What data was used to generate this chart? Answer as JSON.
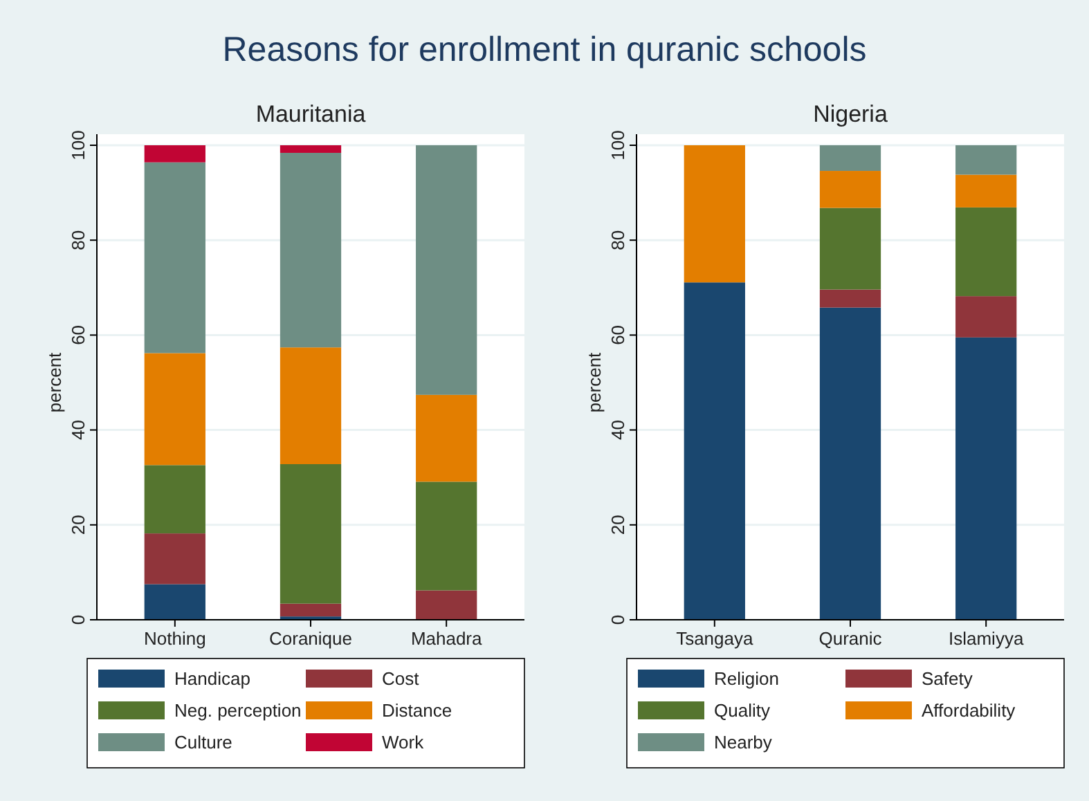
{
  "chart_data": [
    {
      "type": "bar",
      "title": "Reasons for enrollment in quranic schools",
      "subtitle": "Mauritania",
      "ylabel": "percent",
      "categories": [
        "Nothing",
        "Coranique",
        "Mahadra"
      ],
      "stacked": true,
      "ylim": [
        0,
        100
      ],
      "yticks": [
        0,
        20,
        40,
        60,
        80,
        100
      ],
      "grid": "y",
      "legend": "bottom",
      "series": [
        {
          "name": "Handicap",
          "color": "#1a476f",
          "values": [
            7.5,
            0.7,
            0
          ]
        },
        {
          "name": "Cost",
          "color": "#90353b",
          "values": [
            10.7,
            2.7,
            6.2
          ]
        },
        {
          "name": "Neg. perception",
          "color": "#55752f",
          "values": [
            14.4,
            29.4,
            22.9
          ]
        },
        {
          "name": "Distance",
          "color": "#e37e00",
          "values": [
            23.6,
            24.6,
            18.3
          ]
        },
        {
          "name": "Culture",
          "color": "#6e8e84",
          "values": [
            40.2,
            41.0,
            52.6
          ]
        },
        {
          "name": "Work",
          "color": "#c10534",
          "values": [
            3.6,
            1.6,
            0
          ]
        }
      ]
    },
    {
      "type": "bar",
      "subtitle": "Nigeria",
      "ylabel": "percent",
      "categories": [
        "Tsangaya",
        "Quranic",
        "Islamiyya"
      ],
      "stacked": true,
      "ylim": [
        0,
        100
      ],
      "yticks": [
        0,
        20,
        40,
        60,
        80,
        100
      ],
      "grid": "y",
      "legend": "bottom",
      "series": [
        {
          "name": "Religion",
          "color": "#1a476f",
          "values": [
            71.1,
            65.8,
            59.5
          ]
        },
        {
          "name": "Safety",
          "color": "#90353b",
          "values": [
            0,
            3.8,
            8.7
          ]
        },
        {
          "name": "Quality",
          "color": "#55752f",
          "values": [
            0,
            17.2,
            18.7
          ]
        },
        {
          "name": "Affordability",
          "color": "#e37e00",
          "values": [
            28.9,
            7.8,
            6.9
          ]
        },
        {
          "name": "Nearby",
          "color": "#6e8e84",
          "values": [
            0,
            5.4,
            6.2
          ]
        }
      ]
    }
  ]
}
